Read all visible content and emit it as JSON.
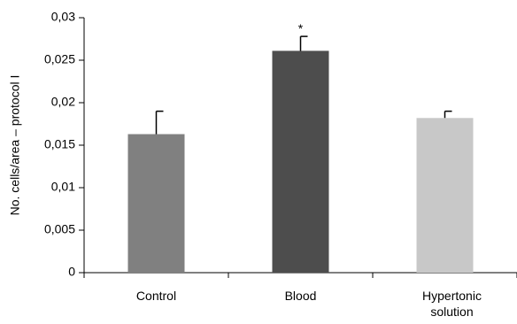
{
  "chart_data": {
    "type": "bar",
    "y_label": "No. cells/area – protocol I",
    "categories": [
      "Control",
      "Blood",
      "Hypertonic solution"
    ],
    "values": [
      0.0163,
      0.0261,
      0.0182
    ],
    "errors": [
      0.0027,
      0.0017,
      0.0008
    ],
    "colors": [
      "#808080",
      "#4d4d4d",
      "#c8c8c8"
    ],
    "annotation": "*",
    "ylim": [
      0,
      0.03
    ],
    "yticks": [
      0,
      {
        "value": 0.005,
        "label": "0,005"
      },
      {
        "value": 0.01,
        "label": "0,01"
      },
      {
        "value": 0.015,
        "label": "0,015"
      },
      {
        "value": 0.02,
        "label": "0,02"
      },
      {
        "value": 0.025,
        "label": "0,025"
      },
      {
        "value": 0.03,
        "label": "0,03"
      }
    ],
    "grid": false
  }
}
